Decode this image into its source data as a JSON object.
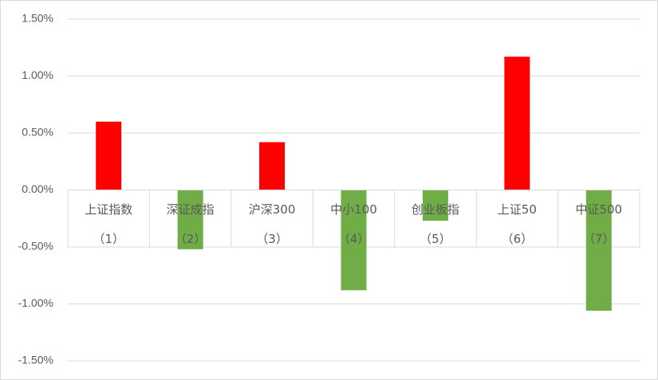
{
  "chart_data": {
    "type": "bar",
    "categories": [
      [
        "上证指数",
        "（1）"
      ],
      [
        "深证成指",
        "（2）"
      ],
      [
        "沪深300",
        "（3）"
      ],
      [
        "中小100",
        "（4）"
      ],
      [
        "创业板指",
        "（5）"
      ],
      [
        "上证50",
        "（6）"
      ],
      [
        "中证500",
        "（7）"
      ]
    ],
    "values": [
      0.6,
      -0.52,
      0.42,
      -0.88,
      -0.27,
      1.17,
      -1.06
    ],
    "positive_color": "#ff0000",
    "negative_color": "#70ad47",
    "ylim": [
      -1.5,
      1.5
    ],
    "yticks": [
      {
        "value": -1.5,
        "label": "-1.50%"
      },
      {
        "value": -1.0,
        "label": "-1.00%"
      },
      {
        "value": -0.5,
        "label": "-0.50%"
      },
      {
        "value": 0,
        "label": "0.00%"
      },
      {
        "value": 0.5,
        "label": "0.50%"
      },
      {
        "value": 1.0,
        "label": "1.00%"
      },
      {
        "value": 1.5,
        "label": "1.50%"
      }
    ],
    "grid": true
  }
}
